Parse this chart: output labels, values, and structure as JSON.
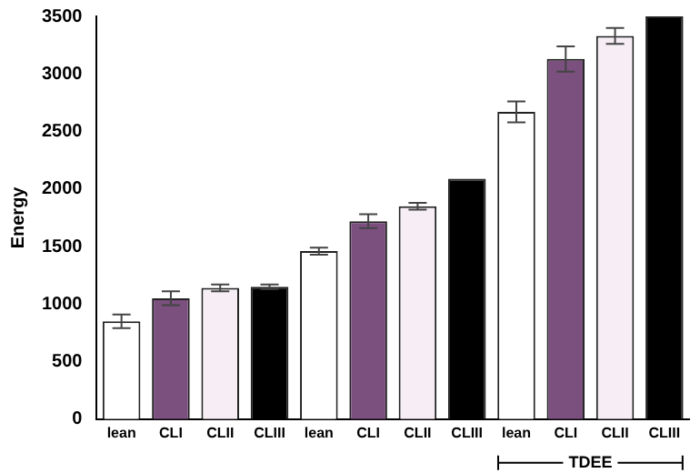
{
  "chart_data": {
    "type": "bar",
    "ylabel": "Energy",
    "categories": [
      "lean",
      "CLI",
      "CLII",
      "CLIII",
      "lean",
      "CLI",
      "CLII",
      "CLIII",
      "lean",
      "CLI",
      "CLII",
      "CLIII"
    ],
    "values": [
      850,
      1050,
      1140,
      1150,
      1460,
      1720,
      1850,
      2090,
      2670,
      3130,
      3330,
      3500
    ],
    "errors": [
      60,
      60,
      30,
      20,
      30,
      60,
      30,
      null,
      90,
      110,
      70,
      null
    ],
    "colors": [
      "#ffffff",
      "#7b4f7e",
      "#f6eef4",
      "#000000",
      "#ffffff",
      "#7b4f7e",
      "#f6eef4",
      "#000000",
      "#ffffff",
      "#7b4f7e",
      "#f6eef4",
      "#000000"
    ],
    "ylim": [
      0,
      3500
    ],
    "yticks": [
      0,
      500,
      1000,
      1500,
      2000,
      2500,
      3000,
      3500
    ],
    "grid": false,
    "legend": false,
    "annotations": [
      "TDEE"
    ]
  }
}
